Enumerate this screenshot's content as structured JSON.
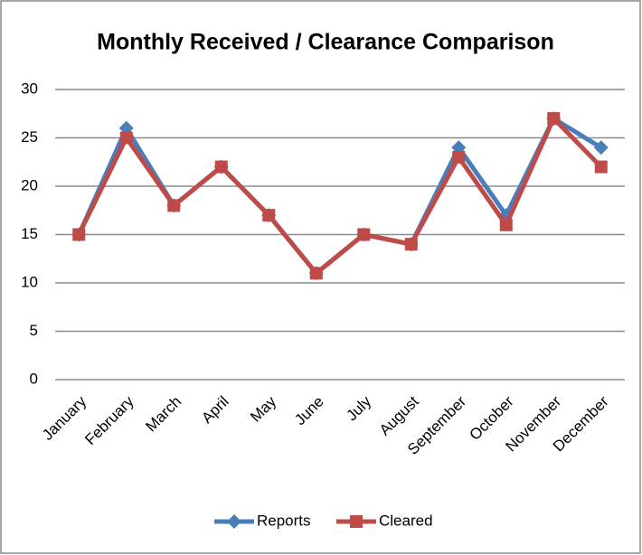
{
  "chart_data": {
    "type": "line",
    "title": "Monthly Received / Clearance Comparison",
    "categories": [
      "January",
      "February",
      "March",
      "April",
      "May",
      "June",
      "July",
      "August",
      "September",
      "October",
      "November",
      "December"
    ],
    "series": [
      {
        "name": "Reports",
        "color": "#4a7ebb",
        "marker": "diamond",
        "values": [
          15,
          26,
          18,
          22,
          17,
          11,
          15,
          14,
          24,
          17,
          27,
          24
        ]
      },
      {
        "name": "Cleared",
        "color": "#be4b48",
        "marker": "square",
        "values": [
          15,
          25,
          18,
          22,
          17,
          11,
          15,
          14,
          23,
          16,
          27,
          22
        ]
      }
    ],
    "ylim": [
      0,
      30
    ],
    "yticks": [
      0,
      5,
      10,
      15,
      20,
      25,
      30
    ],
    "grid": true,
    "legend": "bottom"
  }
}
